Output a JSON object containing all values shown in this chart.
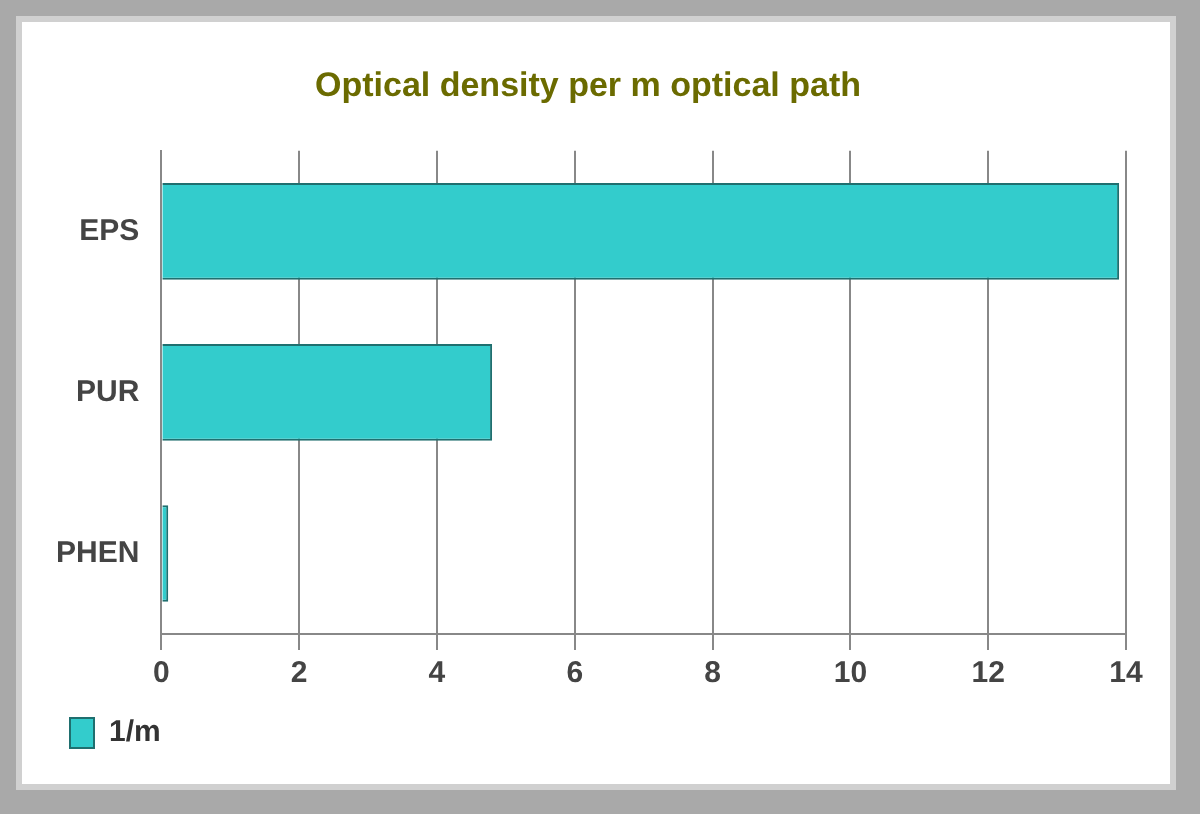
{
  "chart_data": {
    "type": "bar",
    "title": "Optical density per m optical path",
    "orientation": "horizontal",
    "categories": [
      "EPS",
      "PUR",
      "PHEN"
    ],
    "series": [
      {
        "name": "1/m",
        "color": "#33cccc",
        "values": [
          13.9,
          4.8,
          0.1
        ]
      }
    ],
    "xlim": [
      0,
      14
    ],
    "xticks": [
      0,
      2,
      4,
      6,
      8,
      10,
      12,
      14
    ],
    "grid": "x",
    "legend": "bottom left"
  }
}
